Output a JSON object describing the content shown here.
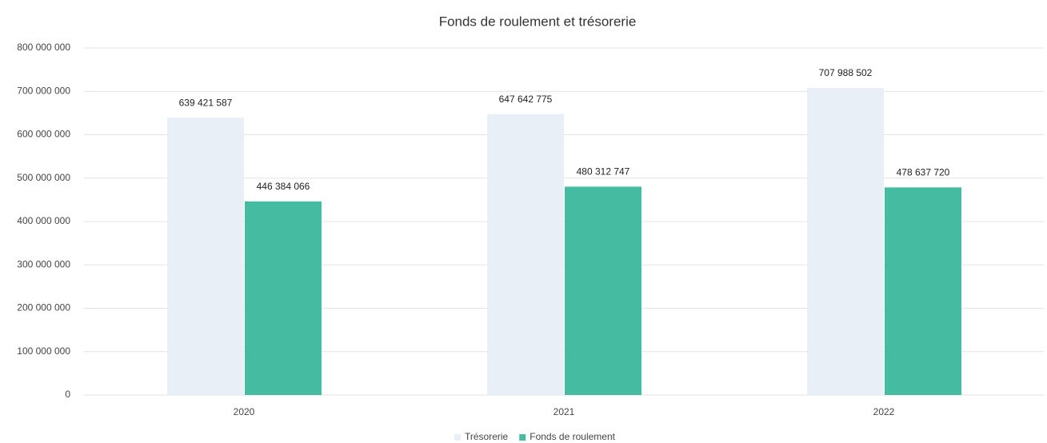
{
  "chart_data": {
    "type": "bar",
    "title": "Fonds de roulement et trésorerie",
    "categories": [
      "2020",
      "2021",
      "2022"
    ],
    "series": [
      {
        "name": "Trésorerie",
        "color": "#e9eff7",
        "values": [
          639421587,
          647642775,
          707988502
        ],
        "value_labels": [
          "639 421 587",
          "647 642 775",
          "707 988 502"
        ]
      },
      {
        "name": "Fonds de roulement",
        "color": "#45bba2",
        "values": [
          446384066,
          480312747,
          478637720
        ],
        "value_labels": [
          "446 384 066",
          "480 312 747",
          "478 637 720"
        ]
      }
    ],
    "ylim": [
      0,
      800000000
    ],
    "yticks": [
      {
        "value": 0,
        "label": "0"
      },
      {
        "value": 100000000,
        "label": "100 000 000"
      },
      {
        "value": 200000000,
        "label": "200 000 000"
      },
      {
        "value": 300000000,
        "label": "300 000 000"
      },
      {
        "value": 400000000,
        "label": "400 000 000"
      },
      {
        "value": 500000000,
        "label": "500 000 000"
      },
      {
        "value": 600000000,
        "label": "600 000 000"
      },
      {
        "value": 700000000,
        "label": "700 000 000"
      },
      {
        "value": 800000000,
        "label": "800 000 000"
      }
    ],
    "grid": true,
    "legend": "bottom"
  }
}
